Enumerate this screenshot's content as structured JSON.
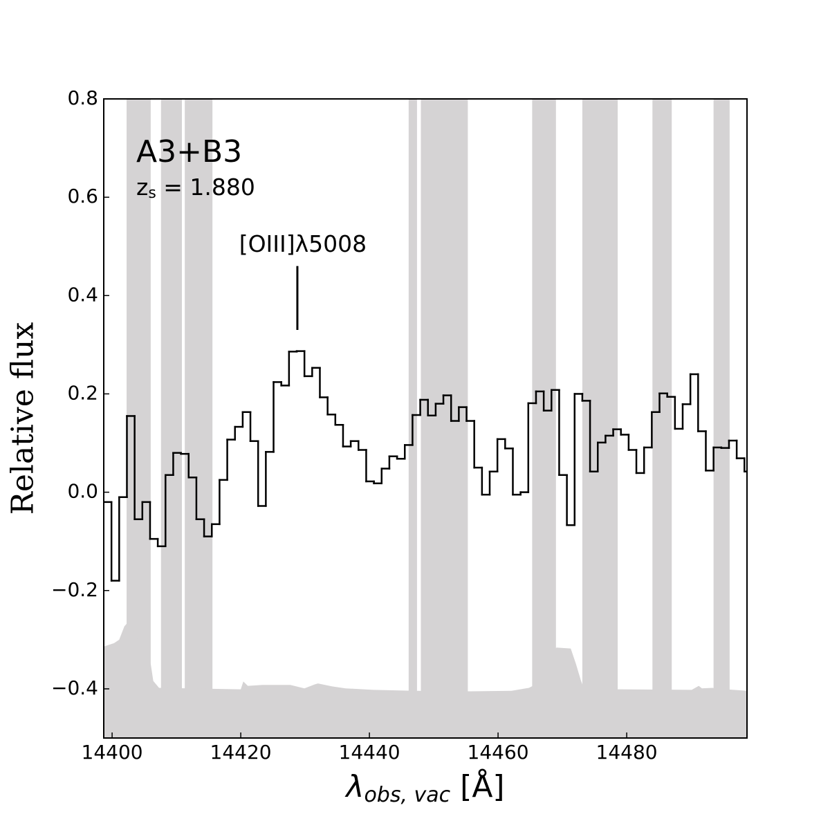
{
  "chart_data": {
    "type": "step",
    "title": "A3+B3",
    "subtitle": {
      "main": "z",
      "sub": "s",
      "rest": " = 1.880"
    },
    "xlabel": {
      "main": "λ",
      "sub": "obs, vac",
      "rest": " [Å]"
    },
    "ylabel": "Relative flux",
    "annotation": {
      "text": "[OIII]λ5008",
      "x": 14428.8,
      "y_from": 0.33,
      "y_to": 0.46
    },
    "xlim": [
      14398.7,
      14498.7
    ],
    "ylim": [
      -0.5,
      0.8
    ],
    "xticks": [
      14400,
      14420,
      14440,
      14460,
      14480
    ],
    "yticks": [
      {
        "value": -0.4,
        "label": "−0.4"
      },
      {
        "value": -0.2,
        "label": "−0.2"
      },
      {
        "value": 0.0,
        "label": "0.0"
      },
      0.2,
      0.4,
      0.6,
      0.8
    ],
    "color": "#000000",
    "mask_color": "#d5d3d4",
    "masked_regions": [
      [
        14402.25,
        14406.0
      ],
      [
        14407.6,
        14410.85
      ],
      [
        14411.3,
        14415.6
      ],
      [
        14446.1,
        14447.4
      ],
      [
        14448.0,
        14455.3
      ],
      [
        14465.3,
        14469.0
      ],
      [
        14473.1,
        14478.6
      ],
      [
        14484.0,
        14487.0
      ],
      [
        14493.5,
        14496.0
      ]
    ],
    "x": [
      14398.7,
      14399.9,
      14401.1,
      14402.3,
      14403.5,
      14404.7,
      14405.9,
      14407.1,
      14408.3,
      14409.5,
      14410.7,
      14411.9,
      14413.1,
      14414.3,
      14415.5,
      14416.7,
      14417.9,
      14419.1,
      14420.3,
      14421.5,
      14422.7,
      14423.9,
      14425.1,
      14426.3,
      14427.5,
      14428.7,
      14429.9,
      14431.1,
      14432.3,
      14433.5,
      14434.7,
      14435.9,
      14437.1,
      14438.3,
      14439.5,
      14440.7,
      14441.9,
      14443.1,
      14444.3,
      14445.5,
      14446.7,
      14447.9,
      14449.1,
      14450.3,
      14451.5,
      14452.7,
      14453.9,
      14455.1,
      14456.3,
      14457.5,
      14458.7,
      14459.9,
      14461.1,
      14462.3,
      14463.5,
      14464.7,
      14465.9,
      14467.1,
      14468.3,
      14469.5,
      14470.7,
      14471.9,
      14473.1,
      14474.3,
      14475.5,
      14476.7,
      14477.9,
      14479.1,
      14480.3,
      14481.5,
      14482.7,
      14483.9,
      14485.1,
      14486.3,
      14487.5,
      14488.7,
      14489.9,
      14491.1,
      14492.3,
      14493.5,
      14494.7,
      14495.9,
      14497.1,
      14498.3
    ],
    "values": [
      -0.02,
      -0.18,
      -0.01,
      0.155,
      -0.055,
      -0.02,
      -0.095,
      -0.11,
      0.035,
      0.08,
      0.078,
      0.03,
      -0.055,
      -0.09,
      -0.065,
      0.025,
      0.107,
      0.133,
      0.163,
      0.104,
      -0.028,
      0.082,
      0.224,
      0.217,
      0.286,
      0.287,
      0.236,
      0.253,
      0.193,
      0.158,
      0.137,
      0.093,
      0.104,
      0.086,
      0.022,
      0.018,
      0.048,
      0.073,
      0.068,
      0.096,
      0.157,
      0.188,
      0.156,
      0.18,
      0.197,
      0.145,
      0.173,
      0.145,
      0.05,
      -0.005,
      0.042,
      0.108,
      0.089,
      -0.005,
      0.0,
      0.181,
      0.205,
      0.166,
      0.208,
      0.035,
      -0.067,
      0.2,
      0.186,
      0.042,
      0.101,
      0.115,
      0.128,
      0.117,
      0.086,
      0.039,
      0.091,
      0.163,
      0.201,
      0.194,
      0.129,
      0.179,
      0.24,
      0.124,
      0.044,
      0.091,
      0.09,
      0.105,
      0.069,
      0.042
    ],
    "noise": {
      "x": [
        14398.7,
        14400.3,
        14401.1,
        14401.9,
        14402.5,
        14406.0,
        14406.4,
        14407.3,
        14420.0,
        14420.4,
        14421.1,
        14423.4,
        14427.7,
        14429.9,
        14431.5,
        14432.0,
        14434.2,
        14436.3,
        14440.6,
        14447.1,
        14455.7,
        14462.1,
        14464.8,
        14465.4,
        14468.6,
        14469.1,
        14471.3,
        14472.1,
        14472.9,
        14473.4,
        14479.3,
        14490.1,
        14491.2,
        14491.7,
        14493.3,
        14495.5,
        14498.7
      ],
      "values": [
        -0.314,
        -0.307,
        -0.3,
        -0.273,
        -0.264,
        -0.349,
        -0.384,
        -0.398,
        -0.401,
        -0.385,
        -0.394,
        -0.392,
        -0.392,
        -0.399,
        -0.391,
        -0.389,
        -0.395,
        -0.399,
        -0.402,
        -0.404,
        -0.405,
        -0.404,
        -0.398,
        -0.394,
        -0.321,
        -0.316,
        -0.318,
        -0.349,
        -0.384,
        -0.401,
        -0.401,
        -0.402,
        -0.394,
        -0.399,
        -0.398,
        -0.401,
        -0.404
      ]
    }
  }
}
